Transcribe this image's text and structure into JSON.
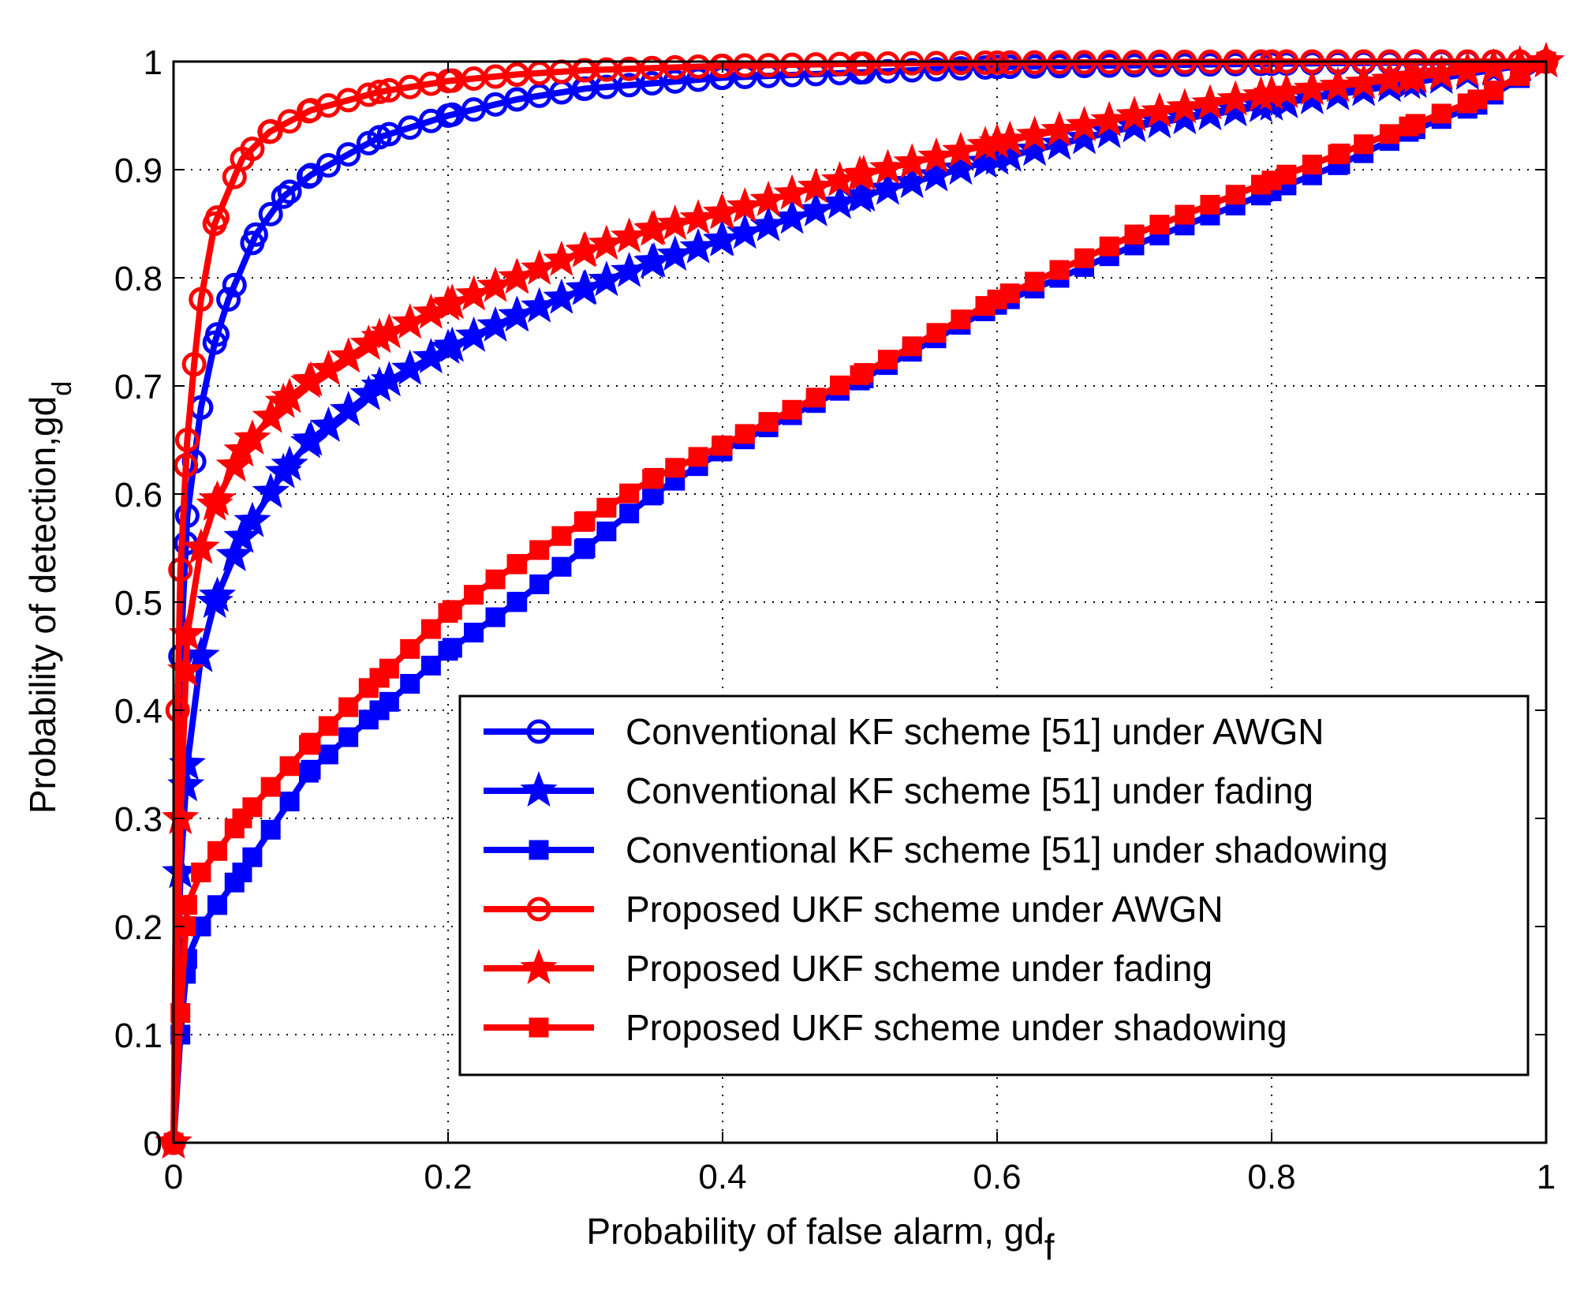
{
  "chart_data": {
    "type": "line",
    "title": "",
    "xlabel": "Probability of false alarm, gd",
    "xlabel_sub": "f",
    "ylabel": "Probability of detection,gd",
    "ylabel_sub": "d",
    "xlim": [
      0,
      1
    ],
    "ylim": [
      0,
      1
    ],
    "xticks": [
      "0",
      "0.2",
      "0.4",
      "0.6",
      "0.8",
      "1"
    ],
    "yticks": [
      "0",
      "0.1",
      "0.2",
      "0.3",
      "0.4",
      "0.5",
      "0.6",
      "0.7",
      "0.8",
      "0.9",
      "1"
    ],
    "grid": true,
    "legend_position": "bottom-right",
    "series": [
      {
        "name": "Conventional KF scheme [51] under AWGN",
        "color": "#0000ff",
        "marker": "circle",
        "x": [
          0,
          0.005,
          0.01,
          0.015,
          0.02,
          0.03,
          0.04,
          0.06,
          0.08,
          0.1,
          0.15,
          0.2,
          0.25,
          0.3,
          0.4,
          0.5,
          0.6,
          0.8,
          1.0
        ],
        "y": [
          0,
          0.45,
          0.58,
          0.63,
          0.68,
          0.74,
          0.78,
          0.84,
          0.875,
          0.895,
          0.93,
          0.95,
          0.965,
          0.975,
          0.985,
          0.99,
          0.995,
          0.998,
          1.0
        ]
      },
      {
        "name": "Conventional KF scheme [51] under fading",
        "color": "#0000ff",
        "marker": "star",
        "x": [
          0,
          0.005,
          0.01,
          0.02,
          0.03,
          0.05,
          0.08,
          0.1,
          0.15,
          0.2,
          0.25,
          0.3,
          0.35,
          0.4,
          0.5,
          0.6,
          0.7,
          0.8,
          0.9,
          1.0
        ],
        "y": [
          0,
          0.25,
          0.35,
          0.45,
          0.5,
          0.56,
          0.62,
          0.65,
          0.7,
          0.735,
          0.765,
          0.79,
          0.815,
          0.835,
          0.875,
          0.91,
          0.94,
          0.96,
          0.98,
          1.0
        ]
      },
      {
        "name": "Conventional KF scheme [51] under shadowing",
        "color": "#0000ff",
        "marker": "square",
        "x": [
          0,
          0.005,
          0.01,
          0.02,
          0.05,
          0.1,
          0.15,
          0.2,
          0.25,
          0.3,
          0.35,
          0.4,
          0.5,
          0.6,
          0.7,
          0.8,
          0.85,
          0.9,
          0.95,
          1.0
        ],
        "y": [
          0,
          0.1,
          0.17,
          0.2,
          0.25,
          0.345,
          0.4,
          0.455,
          0.5,
          0.55,
          0.6,
          0.64,
          0.705,
          0.775,
          0.83,
          0.88,
          0.905,
          0.935,
          0.96,
          1.0
        ]
      },
      {
        "name": "Proposed UKF scheme under AWGN",
        "color": "#ff0000",
        "marker": "circle",
        "x": [
          0,
          0.003,
          0.005,
          0.01,
          0.015,
          0.02,
          0.03,
          0.05,
          0.07,
          0.1,
          0.15,
          0.2,
          0.25,
          0.3,
          0.4,
          0.5,
          0.6,
          0.8,
          1.0
        ],
        "y": [
          0,
          0.4,
          0.53,
          0.65,
          0.72,
          0.78,
          0.85,
          0.91,
          0.935,
          0.955,
          0.972,
          0.982,
          0.988,
          0.992,
          0.996,
          0.998,
          0.999,
          1.0,
          1.0
        ]
      },
      {
        "name": "Proposed UKF scheme under fading",
        "color": "#ff0000",
        "marker": "star",
        "x": [
          0,
          0.005,
          0.01,
          0.02,
          0.03,
          0.05,
          0.08,
          0.1,
          0.15,
          0.2,
          0.25,
          0.3,
          0.35,
          0.4,
          0.5,
          0.6,
          0.7,
          0.8,
          0.9,
          1.0
        ],
        "y": [
          0,
          0.3,
          0.47,
          0.55,
          0.59,
          0.64,
          0.685,
          0.705,
          0.745,
          0.775,
          0.8,
          0.825,
          0.845,
          0.86,
          0.895,
          0.925,
          0.95,
          0.97,
          0.985,
          1.0
        ]
      },
      {
        "name": "Proposed UKF scheme under shadowing",
        "color": "#ff0000",
        "marker": "square",
        "x": [
          0,
          0.005,
          0.01,
          0.02,
          0.05,
          0.1,
          0.15,
          0.2,
          0.25,
          0.3,
          0.35,
          0.4,
          0.5,
          0.6,
          0.7,
          0.8,
          0.85,
          0.9,
          0.95,
          1.0
        ],
        "y": [
          0,
          0.12,
          0.22,
          0.25,
          0.3,
          0.37,
          0.43,
          0.49,
          0.535,
          0.575,
          0.615,
          0.645,
          0.71,
          0.78,
          0.84,
          0.89,
          0.915,
          0.94,
          0.965,
          1.0
        ]
      }
    ]
  }
}
